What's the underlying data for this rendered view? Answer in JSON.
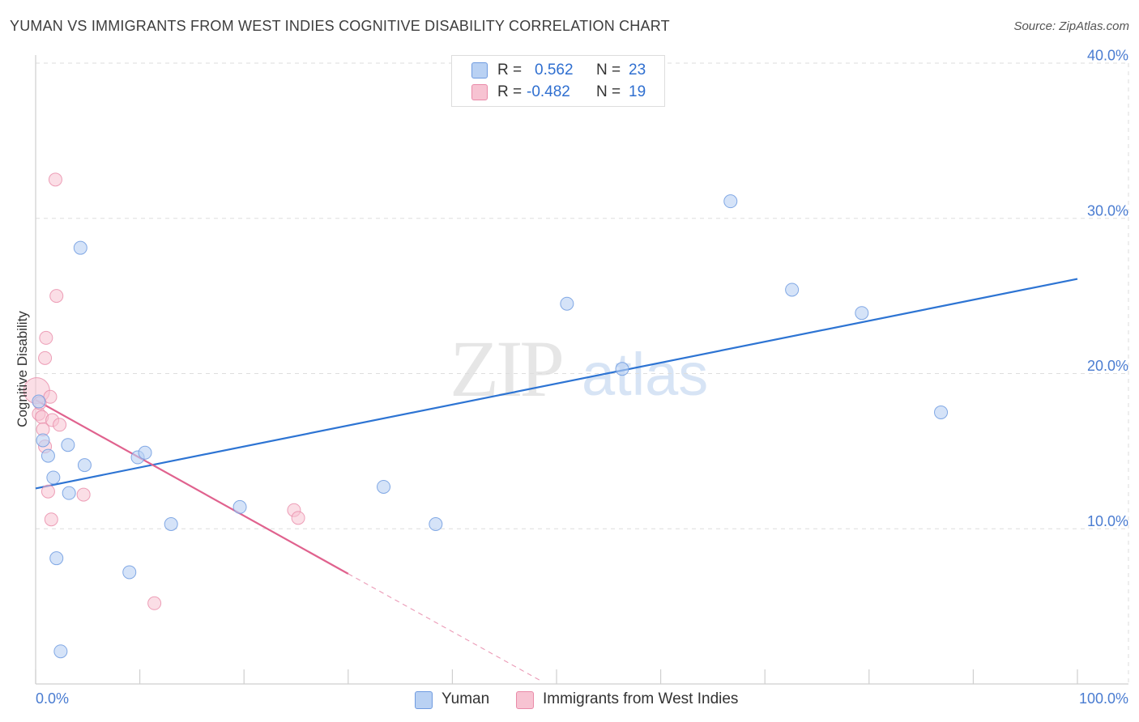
{
  "title": "YUMAN VS IMMIGRANTS FROM WEST INDIES COGNITIVE DISABILITY CORRELATION CHART",
  "source": "Source: ZipAtlas.com",
  "watermark": {
    "zip": "ZIP",
    "atlas": "atlas"
  },
  "legend": {
    "rows": [
      {
        "r_label": "R =",
        "r_value": "0.562",
        "n_label": "N =",
        "n_value": "23"
      },
      {
        "r_label": "R =",
        "r_value": "-0.482",
        "n_label": "N =",
        "n_value": "19"
      }
    ]
  },
  "bottom_legend": [
    "Yuman",
    "Immigrants from West Indies"
  ],
  "colors": {
    "blue_fill": "#b9d1f3",
    "blue_stroke": "#6f9be0",
    "blue_line": "#2d74d3",
    "pink_fill": "#f7c3d2",
    "pink_stroke": "#e98aa8",
    "pink_line": "#e0628e",
    "grid": "#dedede",
    "axis_text": "#4a7cd1"
  },
  "chart_data": {
    "type": "scatter",
    "title": "YUMAN VS IMMIGRANTS FROM WEST INDIES COGNITIVE DISABILITY CORRELATION CHART",
    "xlabel": "",
    "ylabel": "Cognitive Disability",
    "xlim": [
      0,
      100
    ],
    "ylim": [
      0,
      40
    ],
    "x_tick_labels": [
      "0.0%",
      "100.0%"
    ],
    "y_ticks": [
      10,
      20,
      30,
      40
    ],
    "y_tick_labels": [
      "10.0%",
      "20.0%",
      "30.0%",
      "40.0%"
    ],
    "grid": true,
    "series": [
      {
        "name": "Yuman",
        "points": [
          {
            "x": 0.3,
            "y": 18.2
          },
          {
            "x": 0.7,
            "y": 15.7
          },
          {
            "x": 1.2,
            "y": 14.7
          },
          {
            "x": 1.7,
            "y": 13.3
          },
          {
            "x": 2.0,
            "y": 8.1
          },
          {
            "x": 2.4,
            "y": 2.1
          },
          {
            "x": 3.1,
            "y": 15.4
          },
          {
            "x": 3.2,
            "y": 12.3
          },
          {
            "x": 4.3,
            "y": 28.1
          },
          {
            "x": 4.7,
            "y": 14.1
          },
          {
            "x": 9.0,
            "y": 7.2
          },
          {
            "x": 9.8,
            "y": 14.6
          },
          {
            "x": 10.5,
            "y": 14.9
          },
          {
            "x": 13.0,
            "y": 10.3
          },
          {
            "x": 19.6,
            "y": 11.4
          },
          {
            "x": 33.4,
            "y": 12.7
          },
          {
            "x": 38.4,
            "y": 10.3
          },
          {
            "x": 51.0,
            "y": 24.5
          },
          {
            "x": 56.3,
            "y": 20.3
          },
          {
            "x": 66.7,
            "y": 31.1
          },
          {
            "x": 72.6,
            "y": 25.4
          },
          {
            "x": 79.3,
            "y": 23.9
          },
          {
            "x": 86.9,
            "y": 17.5
          }
        ],
        "trend": {
          "x": [
            0,
            100
          ],
          "y": [
            12.6,
            26.1
          ]
        }
      },
      {
        "name": "Immigrants from West Indies",
        "points": [
          {
            "x": 0.1,
            "y": 18.9
          },
          {
            "x": 0.3,
            "y": 17.4
          },
          {
            "x": 0.4,
            "y": 18.1
          },
          {
            "x": 0.6,
            "y": 17.2
          },
          {
            "x": 0.7,
            "y": 16.4
          },
          {
            "x": 0.9,
            "y": 15.3
          },
          {
            "x": 0.9,
            "y": 21.0
          },
          {
            "x": 1.0,
            "y": 22.3
          },
          {
            "x": 1.2,
            "y": 12.4
          },
          {
            "x": 1.4,
            "y": 18.5
          },
          {
            "x": 1.5,
            "y": 10.6
          },
          {
            "x": 1.6,
            "y": 17.0
          },
          {
            "x": 1.9,
            "y": 32.5
          },
          {
            "x": 2.0,
            "y": 25.0
          },
          {
            "x": 2.3,
            "y": 16.7
          },
          {
            "x": 4.6,
            "y": 12.2
          },
          {
            "x": 11.4,
            "y": 5.2
          },
          {
            "x": 24.8,
            "y": 11.2
          },
          {
            "x": 25.2,
            "y": 10.7
          }
        ],
        "trend": {
          "x": [
            0,
            30
          ],
          "y": [
            18.3,
            7.1
          ]
        },
        "trend_dashed": {
          "x": [
            30,
            48.5
          ],
          "y": [
            7.1,
            0.2
          ]
        }
      }
    ]
  }
}
